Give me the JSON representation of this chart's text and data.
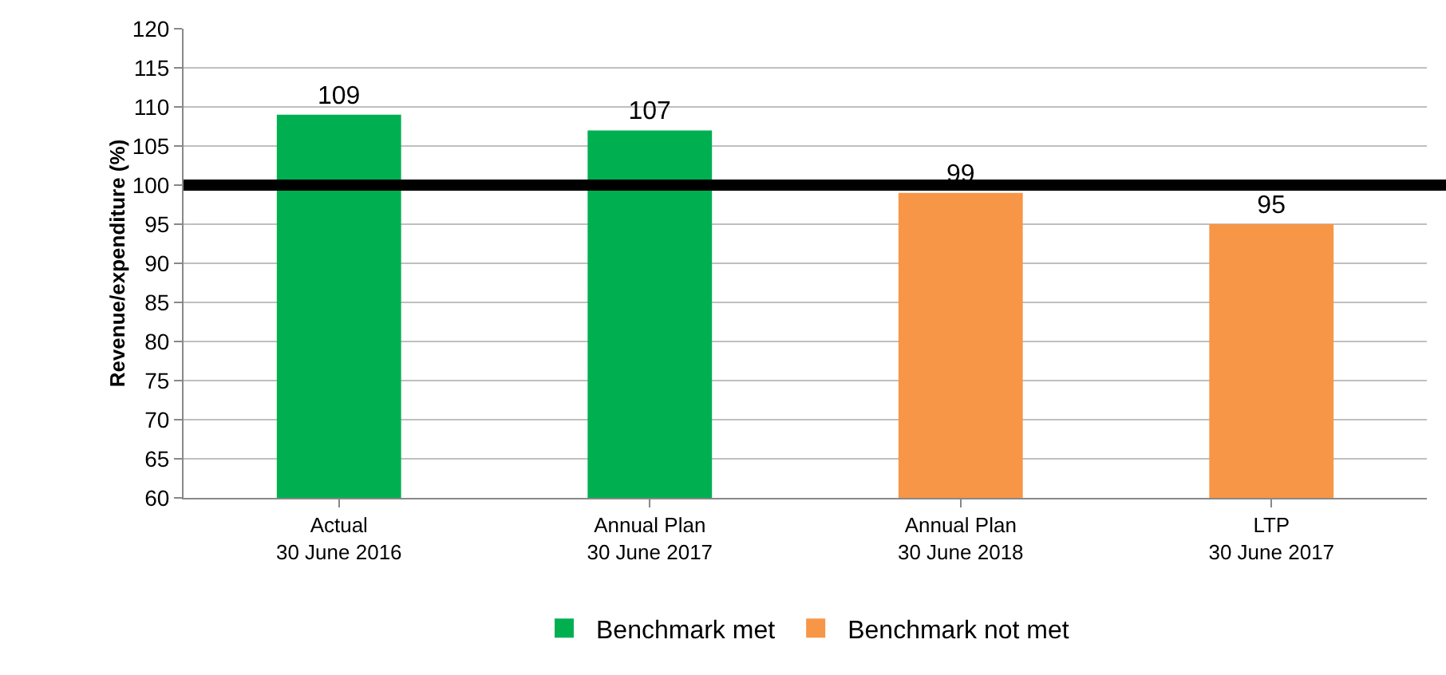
{
  "chart_data": {
    "type": "bar",
    "ylabel": "Revenue/expenditure (%)",
    "categories": [
      "Actual\n30 June 2016",
      "Annual Plan\n30 June 2017",
      "Annual Plan\n30 June 2018",
      "LTP\n30 June 2017"
    ],
    "series": [
      {
        "name": "Benchmark met",
        "color": "#00b050",
        "values": [
          109,
          107,
          null,
          null
        ]
      },
      {
        "name": "Benchmark not met",
        "color": "#f79646",
        "values": [
          null,
          null,
          99,
          95
        ]
      }
    ],
    "ylim": [
      60,
      120
    ],
    "yticks": [
      60,
      65,
      70,
      75,
      80,
      85,
      90,
      95,
      100,
      105,
      110,
      115,
      120
    ],
    "grid": "y",
    "legend": "bottom",
    "data_labels": true,
    "ref_lines": [
      {
        "axis": "y",
        "value": 100,
        "color": "#000000"
      }
    ]
  }
}
